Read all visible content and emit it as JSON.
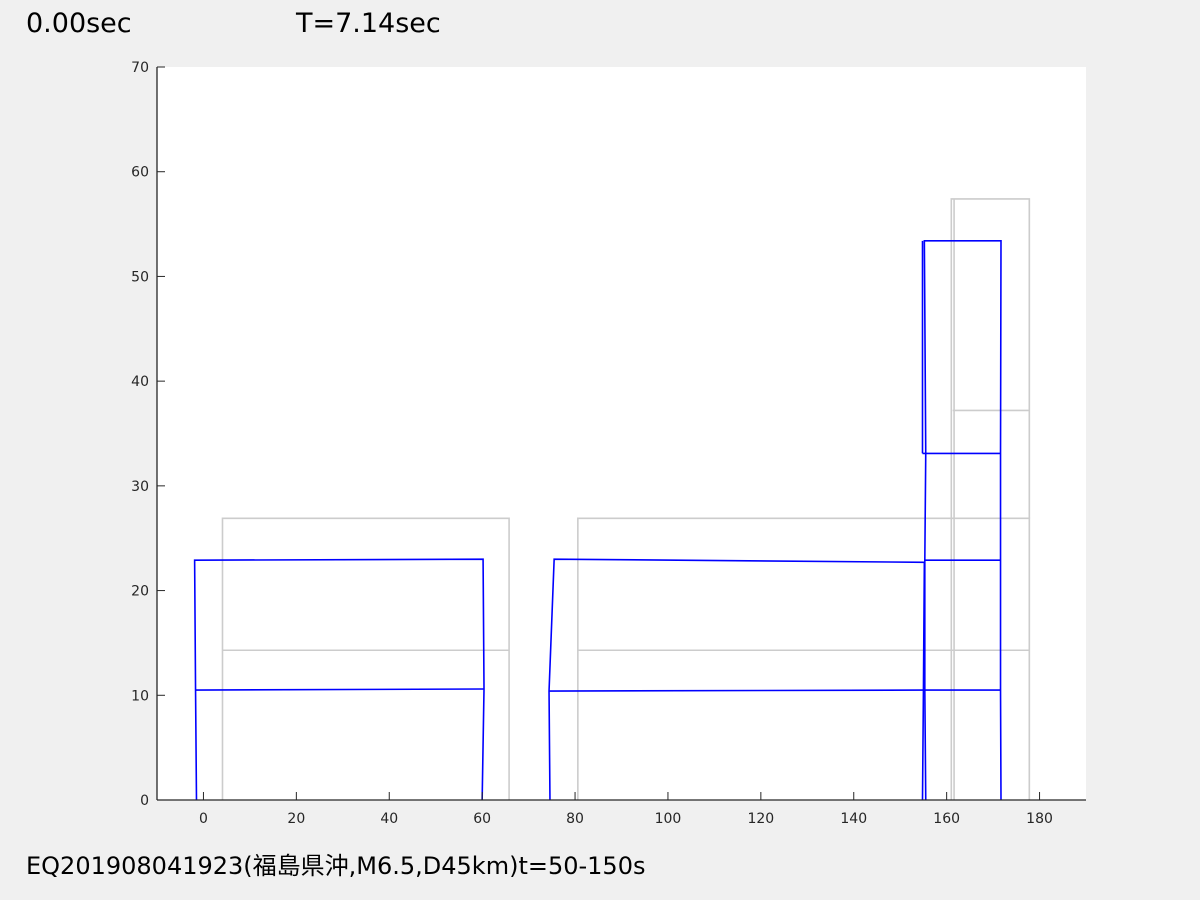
{
  "header": {
    "elapsed": "0.00sec",
    "period": "T=7.14sec"
  },
  "caption": "EQ201908041923(福島県沖,M6.5,D45km)t=50-150s",
  "chart_data": {
    "type": "line",
    "title": "",
    "xlabel": "",
    "ylabel": "",
    "xlim": [
      -10,
      190
    ],
    "ylim": [
      0,
      70
    ],
    "xticks": [
      0,
      20,
      40,
      60,
      80,
      100,
      120,
      140,
      160,
      180
    ],
    "yticks": [
      0,
      10,
      20,
      30,
      40,
      50,
      60,
      70
    ],
    "grid": false,
    "colors": {
      "undeformed": "#cccccc",
      "deformed": "#0000ff"
    },
    "undeformed": [
      [
        [
          4.1,
          0
        ],
        [
          4.1,
          26.9
        ],
        [
          65.8,
          26.9
        ],
        [
          65.8,
          0
        ]
      ],
      [
        [
          4.1,
          14.3
        ],
        [
          65.8,
          14.3
        ]
      ],
      [
        [
          80.6,
          0
        ],
        [
          80.6,
          26.9
        ],
        [
          177.8,
          26.9
        ],
        [
          177.8,
          0
        ]
      ],
      [
        [
          80.6,
          14.3
        ],
        [
          177.8,
          14.3
        ]
      ],
      [
        [
          161.0,
          0
        ],
        [
          161.0,
          57.4
        ],
        [
          177.8,
          57.4
        ],
        [
          177.8,
          26.9
        ]
      ],
      [
        [
          161.6,
          0
        ],
        [
          161.6,
          57.4
        ]
      ],
      [
        [
          161.3,
          37.2
        ],
        [
          177.8,
          37.2
        ]
      ]
    ],
    "deformed": [
      [
        [
          -1.5,
          0
        ],
        [
          -1.7,
          10.5
        ],
        [
          -1.9,
          22.9
        ],
        [
          60.2,
          23.0
        ],
        [
          60.4,
          10.6
        ],
        [
          60.0,
          0
        ]
      ],
      [
        [
          -1.7,
          10.5
        ],
        [
          60.4,
          10.6
        ]
      ],
      [
        [
          74.6,
          0
        ],
        [
          74.4,
          10.4
        ],
        [
          75.5,
          23.0
        ],
        [
          155.2,
          22.7
        ],
        [
          155.0,
          10.5
        ],
        [
          154.8,
          0
        ]
      ],
      [
        [
          74.4,
          10.4
        ],
        [
          155.0,
          10.5
        ]
      ],
      [
        [
          155.5,
          0
        ],
        [
          155.3,
          10.5
        ],
        [
          155.3,
          22.9
        ],
        [
          155.5,
          33.1
        ],
        [
          155.2,
          53.4
        ],
        [
          171.7,
          53.4
        ],
        [
          171.6,
          33.1
        ],
        [
          171.6,
          22.9
        ],
        [
          171.6,
          10.5
        ],
        [
          171.7,
          0
        ]
      ],
      [
        [
          155.2,
          22.9
        ],
        [
          171.6,
          22.9
        ]
      ],
      [
        [
          155.3,
          10.5
        ],
        [
          171.6,
          10.5
        ]
      ],
      [
        [
          154.8,
          33.1
        ],
        [
          171.6,
          33.1
        ]
      ],
      [
        [
          154.8,
          53.4
        ],
        [
          154.8,
          33.1
        ]
      ]
    ]
  }
}
